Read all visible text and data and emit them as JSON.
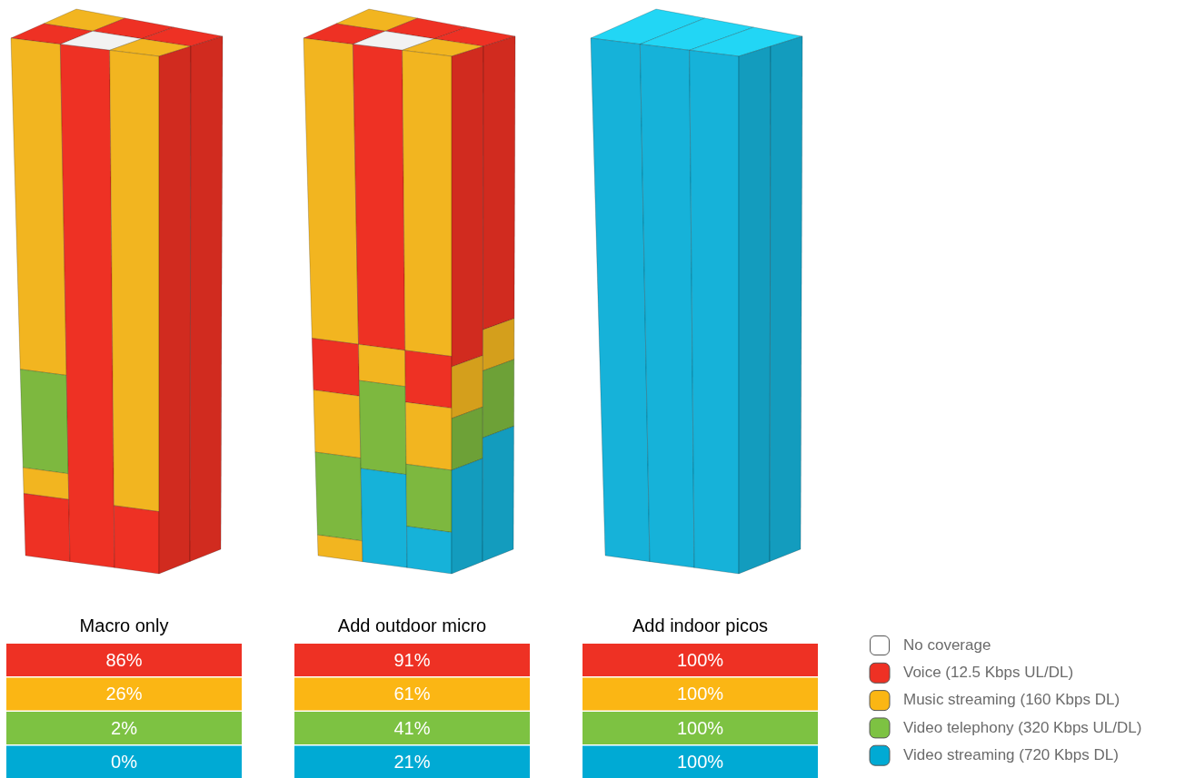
{
  "chart_data": {
    "type": "other",
    "categories": [
      "Macro only",
      "Add outdoor micro",
      "Add indoor picos"
    ],
    "series": [
      {
        "name": "Voice (12.5 Kbps UL/DL)",
        "color": "#ee3124",
        "values": [
          86,
          91,
          100
        ],
        "value_labels": [
          "86%",
          "91%",
          "100%"
        ]
      },
      {
        "name": "Music streaming (160 Kbps DL)",
        "color": "#fbb614",
        "values": [
          26,
          61,
          100
        ],
        "value_labels": [
          "26%",
          "61%",
          "100%"
        ]
      },
      {
        "name": "Video telephony (320 Kbps UL/DL)",
        "color": "#7dc242",
        "values": [
          2,
          41,
          100
        ],
        "value_labels": [
          "2%",
          "41%",
          "100%"
        ]
      },
      {
        "name": "Video streaming (720 Kbps DL)",
        "color": "#00aad4",
        "values": [
          0,
          21,
          100
        ],
        "value_labels": [
          "0%",
          "21%",
          "100%"
        ]
      }
    ],
    "legend": "right",
    "annotations": [
      "No coverage"
    ]
  }
}
